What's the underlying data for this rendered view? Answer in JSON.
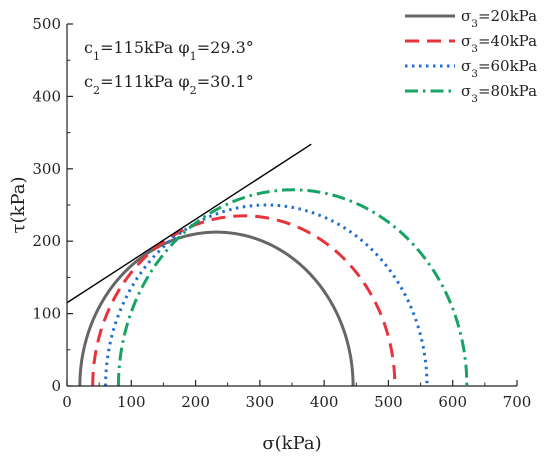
{
  "chart_data": {
    "type": "line",
    "title": "",
    "xlabel": "σ(kPa)",
    "ylabel": "τ(kPa)",
    "xlim": [
      0,
      700
    ],
    "ylim": [
      0,
      500
    ],
    "xticks": [
      0,
      100,
      200,
      300,
      400,
      500,
      600,
      700
    ],
    "yticks": [
      0,
      100,
      200,
      300,
      400,
      500
    ],
    "grid": false,
    "legend_position": "top-right",
    "annotations": [
      {
        "parts": [
          [
            "c",
            ""
          ],
          [
            "1",
            "sub"
          ],
          [
            "=115kPa  φ",
            ""
          ],
          [
            "1",
            "sub"
          ],
          [
            "=29.3°",
            ""
          ]
        ]
      },
      {
        "parts": [
          [
            "c",
            ""
          ],
          [
            "2",
            "sub"
          ],
          [
            "=111kPa  φ",
            ""
          ],
          [
            "2",
            "sub"
          ],
          [
            "=30.1°",
            ""
          ]
        ]
      }
    ],
    "series": [
      {
        "name": "σ3=20kPa",
        "legend_parts": [
          [
            "σ",
            ""
          ],
          [
            "3",
            "sub"
          ],
          [
            "=20kPa",
            ""
          ]
        ],
        "sigma3": 20,
        "sigma1": 445,
        "color": "#666666",
        "style": "solid"
      },
      {
        "name": "σ3=40kPa",
        "legend_parts": [
          [
            "σ",
            ""
          ],
          [
            "3",
            "sub"
          ],
          [
            "=40kPa",
            ""
          ]
        ],
        "sigma3": 40,
        "sigma1": 510,
        "color": "#e8323c",
        "style": "dash"
      },
      {
        "name": "σ3=60kPa",
        "legend_parts": [
          [
            "σ",
            ""
          ],
          [
            "3",
            "sub"
          ],
          [
            "=60kPa",
            ""
          ]
        ],
        "sigma3": 60,
        "sigma1": 560,
        "color": "#1f6fd1",
        "style": "dot"
      },
      {
        "name": "σ3=80kPa",
        "legend_parts": [
          [
            "σ",
            ""
          ],
          [
            "3",
            "sub"
          ],
          [
            "=80kPa",
            ""
          ]
        ],
        "sigma3": 80,
        "sigma1": 622,
        "color": "#16a363",
        "style": "dashdot"
      }
    ],
    "envelope": {
      "x": [
        0,
        380
      ],
      "y": [
        115,
        334
      ],
      "color": "#000000"
    }
  }
}
